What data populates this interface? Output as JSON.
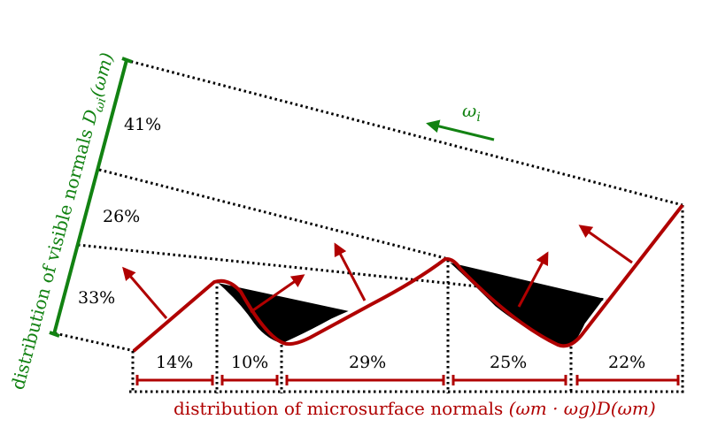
{
  "colors": {
    "red": "#b00000",
    "green": "#128212",
    "black": "#000000"
  },
  "visible": {
    "axis_label_prefix": "distribution of visible normals ",
    "axis_label_symbol": "D",
    "axis_label_sub": "ωi",
    "axis_label_arg": "(ωm)",
    "segments": [
      "41%",
      "26%",
      "33%"
    ]
  },
  "micro": {
    "label_prefix": "distribution of microsurface normals ",
    "label_formula": "(ωm · ωg)D(ωm)",
    "segments": [
      "14%",
      "10%",
      "29%",
      "25%",
      "22%"
    ]
  },
  "incident": {
    "symbol": "ω",
    "sub": "i"
  }
}
